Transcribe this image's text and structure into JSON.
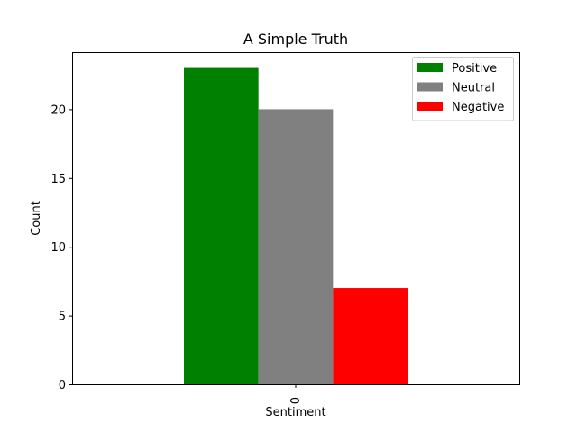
{
  "chart_data": {
    "type": "bar",
    "title": "A Simple Truth",
    "xlabel": "Sentiment",
    "ylabel": "Count",
    "categories": [
      "0"
    ],
    "series": [
      {
        "name": "Positive",
        "values": [
          23
        ],
        "color": "#008000"
      },
      {
        "name": "Neutral",
        "values": [
          20
        ],
        "color": "#808080"
      },
      {
        "name": "Negative",
        "values": [
          7
        ],
        "color": "#ff0000"
      }
    ],
    "ylim": [
      0,
      24.15
    ],
    "yticks": [
      0,
      5,
      10,
      15,
      20
    ],
    "grid": false,
    "legend_position": "top-right"
  }
}
